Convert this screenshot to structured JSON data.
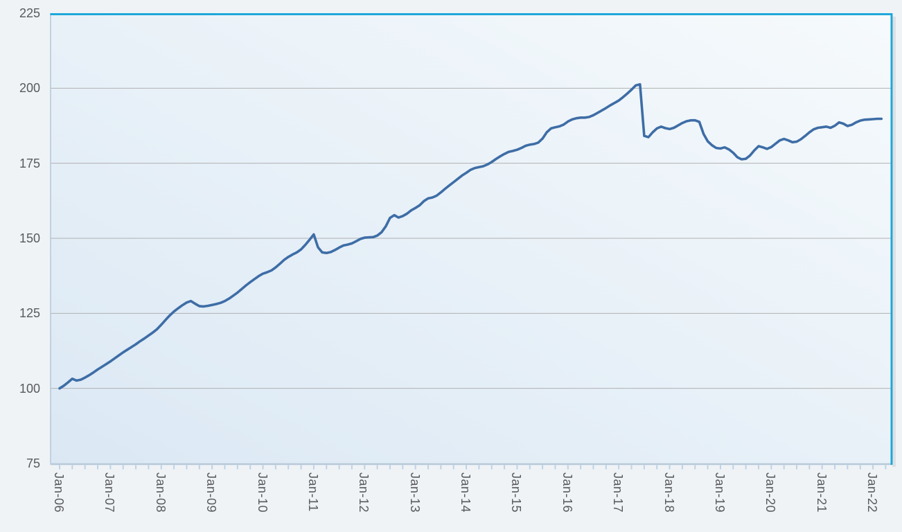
{
  "chart_data": {
    "type": "line",
    "title": "",
    "legend": "none",
    "grid": "horizontal",
    "x_start": "Jan-06",
    "frequency": "monthly",
    "x_tick_labels": [
      "Jan-06",
      "Jan-07",
      "Jan-08",
      "Jan-09",
      "Jan-10",
      "Jan-11",
      "Jan-12",
      "Jan-13",
      "Jan-14",
      "Jan-15",
      "Jan-16",
      "Jan-17",
      "Jan-18",
      "Jan-19",
      "Jan-20",
      "Jan-21",
      "Jan-22"
    ],
    "minor_tick_every_months": 3,
    "y_ticks": [
      225,
      200,
      175,
      150,
      125,
      100,
      75
    ],
    "ylim": [
      75,
      225
    ],
    "values": [
      100.0,
      100.9,
      102.0,
      103.2,
      102.6,
      102.9,
      103.6,
      104.4,
      105.3,
      106.3,
      107.2,
      108.1,
      109.0,
      110.0,
      111.0,
      112.0,
      112.9,
      113.8,
      114.7,
      115.7,
      116.6,
      117.6,
      118.6,
      119.7,
      121.2,
      122.8,
      124.3,
      125.6,
      126.7,
      127.7,
      128.6,
      129.1,
      128.2,
      127.4,
      127.3,
      127.5,
      127.8,
      128.1,
      128.5,
      129.1,
      129.9,
      130.9,
      131.9,
      133.1,
      134.3,
      135.4,
      136.4,
      137.4,
      138.2,
      138.7,
      139.3,
      140.3,
      141.5,
      142.8,
      143.8,
      144.6,
      145.3,
      146.3,
      147.8,
      149.5,
      151.3,
      147.0,
      145.3,
      145.1,
      145.4,
      146.1,
      146.9,
      147.6,
      147.9,
      148.3,
      149.0,
      149.8,
      150.2,
      150.3,
      150.4,
      150.9,
      152.0,
      154.0,
      156.8,
      157.7,
      156.9,
      157.4,
      158.2,
      159.3,
      160.1,
      161.0,
      162.4,
      163.3,
      163.6,
      164.2,
      165.3,
      166.5,
      167.6,
      168.7,
      169.8,
      170.9,
      171.8,
      172.8,
      173.4,
      173.7,
      174.0,
      174.6,
      175.4,
      176.4,
      177.3,
      178.1,
      178.8,
      179.1,
      179.5,
      180.1,
      180.8,
      181.2,
      181.4,
      181.9,
      183.2,
      185.3,
      186.6,
      187.0,
      187.3,
      187.9,
      188.9,
      189.6,
      190.0,
      190.2,
      190.2,
      190.4,
      191.0,
      191.8,
      192.6,
      193.4,
      194.3,
      195.1,
      195.9,
      197.0,
      198.2,
      199.5,
      200.9,
      201.3,
      184.1,
      183.7,
      185.3,
      186.6,
      187.2,
      186.7,
      186.4,
      186.8,
      187.6,
      188.4,
      189.0,
      189.3,
      189.3,
      188.8,
      184.8,
      182.3,
      181.0,
      180.1,
      179.9,
      180.3,
      179.6,
      178.5,
      177.0,
      176.3,
      176.5,
      177.6,
      179.3,
      180.7,
      180.3,
      179.8,
      180.4,
      181.5,
      182.6,
      183.1,
      182.6,
      182.0,
      182.2,
      183.0,
      184.1,
      185.3,
      186.3,
      186.8,
      187.0,
      187.2,
      186.8,
      187.5,
      188.6,
      188.2,
      187.4,
      187.8,
      188.6,
      189.2,
      189.5,
      189.6,
      189.7,
      189.8,
      189.8
    ],
    "colors": {
      "line": "#3e6da6",
      "plot_border_top_right": "#1ea7da",
      "plot_border_left_bottom": "#b7c9d8",
      "gridline": "#b1b1b1",
      "tick": "#bdd2e5",
      "label_text": "#58595c",
      "plot_bg_bottom_left": "#dbe8f4",
      "plot_bg_top_right": "#f6fafc",
      "page_bg": "#eff3f6",
      "shadow": "#dee1e3"
    }
  }
}
